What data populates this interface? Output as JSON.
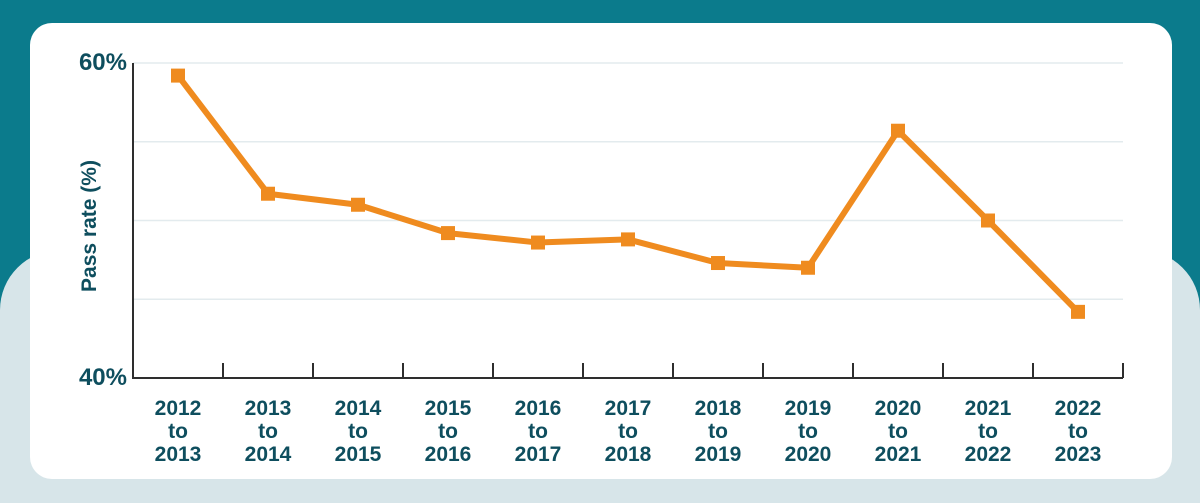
{
  "page": {
    "background_top_color": "#0B7B8C",
    "background_bottom_color": "#D7E5E9",
    "card_color": "#FFFFFF"
  },
  "chart_data": {
    "type": "line",
    "title": "",
    "ylabel": "Pass rate (%)",
    "xlabel": "",
    "categories": [
      "2012 to 2013",
      "2013 to 2014",
      "2014 to 2015",
      "2015 to 2016",
      "2016 to 2017",
      "2017 to 2018",
      "2018 to 2019",
      "2019 to 2020",
      "2020 to 2021",
      "2021 to 2022",
      "2022 to 2023"
    ],
    "series": [
      {
        "name": "Pass rate",
        "values": [
          59.2,
          51.7,
          51.0,
          49.2,
          48.6,
          48.8,
          47.3,
          47.0,
          55.7,
          50.0,
          44.2
        ]
      }
    ],
    "ylim": [
      40,
      60
    ],
    "ytick_labels": {
      "top": "60%",
      "bottom": "40%"
    },
    "gridlines_at": [
      60,
      55,
      50,
      45
    ],
    "grid": "horizontal-only",
    "legend": "none",
    "marker": "square",
    "line_color": "#EF8B1F",
    "text_color": "#0E4E5E",
    "axis_color": "#2E2E2E",
    "gridline_color": "#E3EBEE"
  }
}
